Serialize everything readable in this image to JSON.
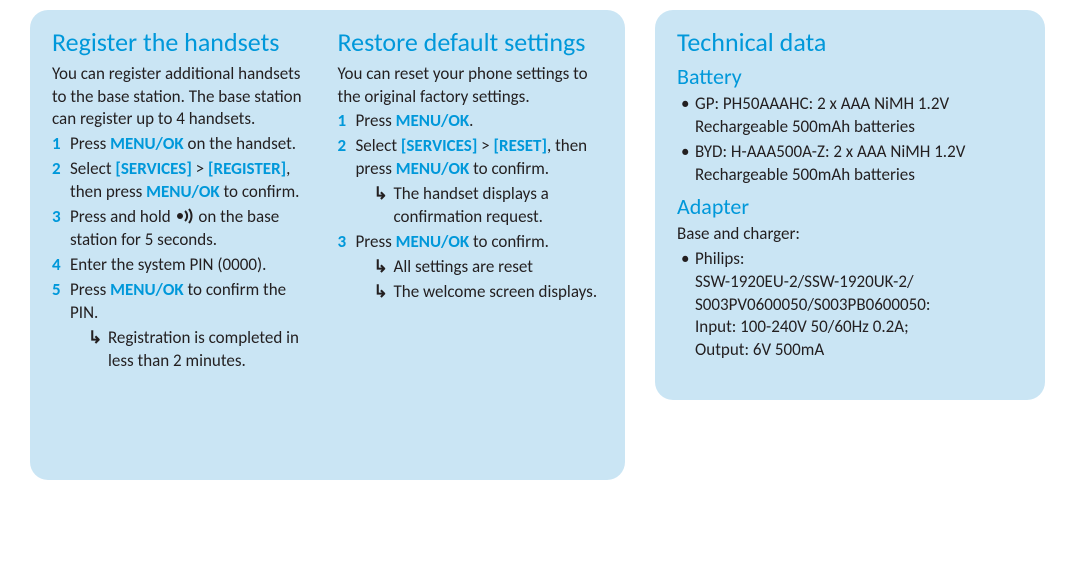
{
  "colors": {
    "panel_bg": "#cae5f4",
    "heading": "#0098da",
    "body_text": "#231f20",
    "page_bg": "#ffffff"
  },
  "typography": {
    "heading_fontsize_pt": 20,
    "subheading_fontsize_pt": 16,
    "body_fontsize_pt": 13
  },
  "left_panel": {
    "col1": {
      "title": "Register the handsets",
      "intro": "You can register additional handsets to the base station. The base station can register up to 4 handsets.",
      "steps": [
        {
          "pre": "Press ",
          "bold1": "MENU/OK",
          "post1": " on the handset."
        },
        {
          "pre": "Select ",
          "bold1": "[SERVICES]",
          "mid": " > ",
          "bold2": "[REGISTER]",
          "post1": ", then press ",
          "bold3": "MENU/OK",
          "post2": " to confirm."
        },
        {
          "pre": "Press and hold ",
          "icon": "signal",
          "post1": " on the base station for 5 seconds."
        },
        {
          "plain": "Enter the system PIN (0000)."
        },
        {
          "pre": "Press ",
          "bold1": "MENU/OK",
          "post1": " to confirm the PIN.",
          "arrows": [
            "Registration is completed in less than 2 minutes."
          ]
        }
      ]
    },
    "col2": {
      "title": "Restore default settings",
      "intro": "You can reset your phone settings to the original factory settings.",
      "steps": [
        {
          "pre": "Press ",
          "bold1": "MENU/OK",
          "post1": "."
        },
        {
          "pre": "Select ",
          "bold1": "[SERVICES]",
          "mid": " > ",
          "bold2": "[RESET]",
          "post1": ", then press ",
          "bold3": "MENU/OK",
          "post2": " to confirm.",
          "arrows": [
            "The handset displays a confirmation request."
          ]
        },
        {
          "pre": "Press ",
          "bold1": "MENU/OK",
          "post1": " to confirm.",
          "arrows": [
            "All settings are reset",
            "The welcome screen displays."
          ]
        }
      ]
    }
  },
  "right_panel": {
    "title": "Technical data",
    "sections": [
      {
        "heading": "Battery",
        "intro": null,
        "bullets": [
          "GP: PH50AAAHC: 2 x AAA NiMH 1.2V Rechargeable 500mAh batteries",
          "BYD: H-AAA500A-Z: 2 x AAA NiMH 1.2V Rechargeable 500mAh batteries"
        ]
      },
      {
        "heading": "Adapter",
        "intro": "Base and charger:",
        "bullets": [
          "Philips:\nSSW-1920EU-2/SSW-1920UK-2/\nS003PV0600050/S003PB0600050:\nInput: 100-240V 50/60Hz 0.2A;\nOutput: 6V 500mA"
        ]
      }
    ]
  }
}
